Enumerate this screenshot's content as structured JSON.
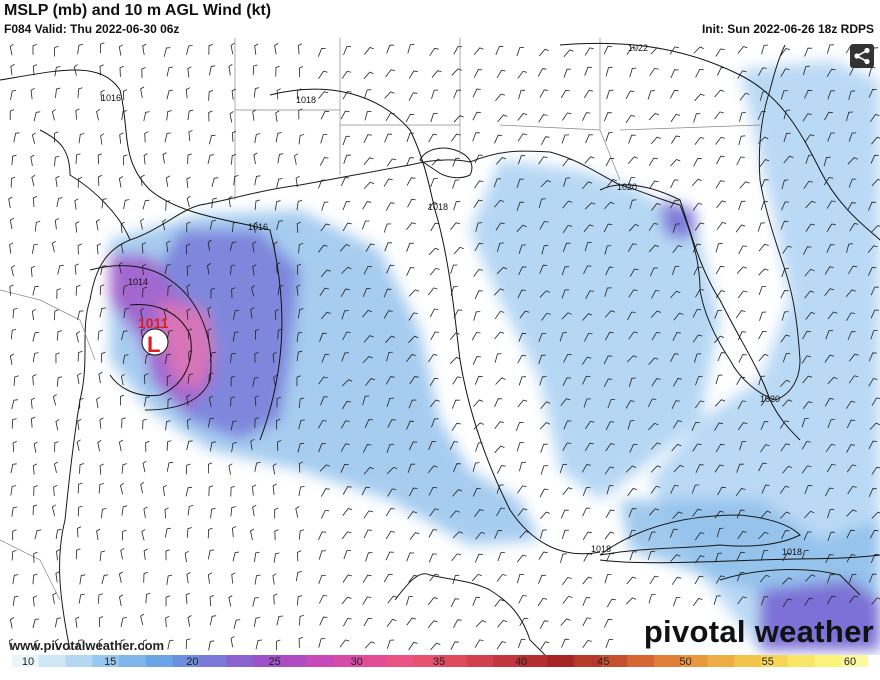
{
  "header": {
    "title": "MSLP (mb) and 10 m AGL Wind (kt)",
    "valid": "F084 Valid: Thu 2022-06-30 06z",
    "init": "Init: Sun 2022-06-26 18z RDPS"
  },
  "map": {
    "isobar_labels": [
      "1022",
      "1016",
      "1018",
      "1020",
      "1018",
      "1016",
      "1014",
      "1020",
      "1018",
      "1018"
    ],
    "low": {
      "pressure": "1011",
      "symbol": "L"
    }
  },
  "branding": {
    "website": "www.pivotalweather.com",
    "logo": "pivotal weather"
  },
  "icons": {
    "share": "share-icon"
  },
  "colorbar": {
    "ticks": [
      "10",
      "15",
      "20",
      "25",
      "30",
      "35",
      "40",
      "45",
      "50",
      "55",
      "60"
    ],
    "colors": [
      "#e9f4fb",
      "#cfe6f7",
      "#b3d7f3",
      "#97c7ef",
      "#7eb6ea",
      "#6aa5e6",
      "#6c8fe0",
      "#7a7ad8",
      "#8b63cf",
      "#9d52c8",
      "#b04bc2",
      "#c64ab8",
      "#d84aa8",
      "#e34d97",
      "#ea5384",
      "#e65270",
      "#de4a5e",
      "#d2404d",
      "#c4363d",
      "#b52d30",
      "#a82525",
      "#b53a2a",
      "#c55030",
      "#d46734",
      "#e07f38",
      "#e9973d",
      "#efae43",
      "#f3c44b",
      "#f6d657",
      "#f9e667",
      "#fbf27a",
      "#fcf8a0"
    ]
  }
}
